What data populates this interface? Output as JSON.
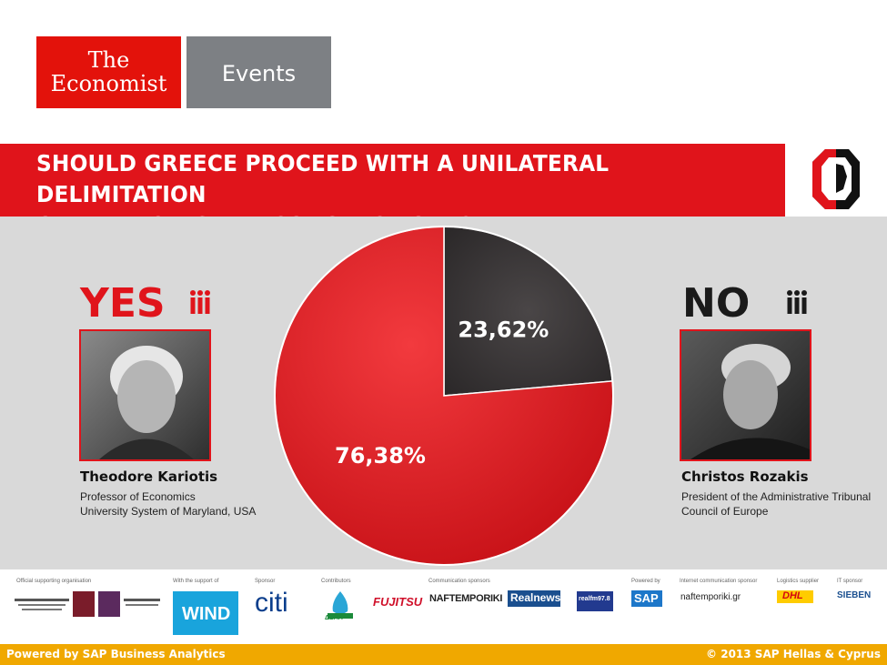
{
  "header": {
    "economist_line1": "The",
    "economist_line2": "Economist",
    "events_label": "Events"
  },
  "question_line1": "SHOULD GREECE PROCEED WITH A UNILATERAL DELIMITATION",
  "question_line2": "OF AN EXCLUSIVE ECONOMIC ZONE?",
  "yes_side": {
    "label": "YES",
    "name": "Theodore Kariotis",
    "role_line1": "Professor of Economics",
    "role_line2": "University System of Maryland, USA"
  },
  "no_side": {
    "label": "NO",
    "name": "Christos Rozakis",
    "role_line1": "President of the Administrative Tribunal",
    "role_line2": "Council of Europe"
  },
  "chart_data": {
    "type": "pie",
    "title": "",
    "slices": [
      {
        "label": "76,38%",
        "value": 76.38,
        "color": "#e0141b"
      },
      {
        "label": "23,62%",
        "value": 23.62,
        "color": "#3a3637"
      }
    ],
    "legend": "none"
  },
  "sponsors": {
    "cap_official": "Official supporting organisation",
    "cap_with": "With the support of",
    "cap_sponsor": "Sponsor",
    "cap_contrib": "Contributors",
    "cap_comm": "Communication sponsors",
    "cap_powered": "Powered by",
    "cap_internet": "Internet communication sponsor",
    "cap_logistics": "Logistics supplier",
    "cap_it": "IT sponsor",
    "logo_wind": "WIND",
    "logo_citi": "citi",
    "logo_deta": "ΔΕΠΑ",
    "logo_fujitsu": "FUJITSU",
    "logo_naft": "NAFTEMPORIKI",
    "logo_realnews": "Realnews",
    "logo_realfm": "realfm97.8",
    "logo_sap": "SAP",
    "logo_naft_gr": "naftemporiki.gr",
    "logo_dhl": "DHL",
    "logo_sieben": "SIEBEN"
  },
  "footer": {
    "left": "Powered by SAP Business Analytics",
    "right": "© 2013 SAP Hellas & Cyprus"
  },
  "colors": {
    "brand_red": "#e0141b",
    "dark_slice": "#3a3637",
    "footer_orange": "#f0a800",
    "panel_grey": "#d9d9d9"
  }
}
